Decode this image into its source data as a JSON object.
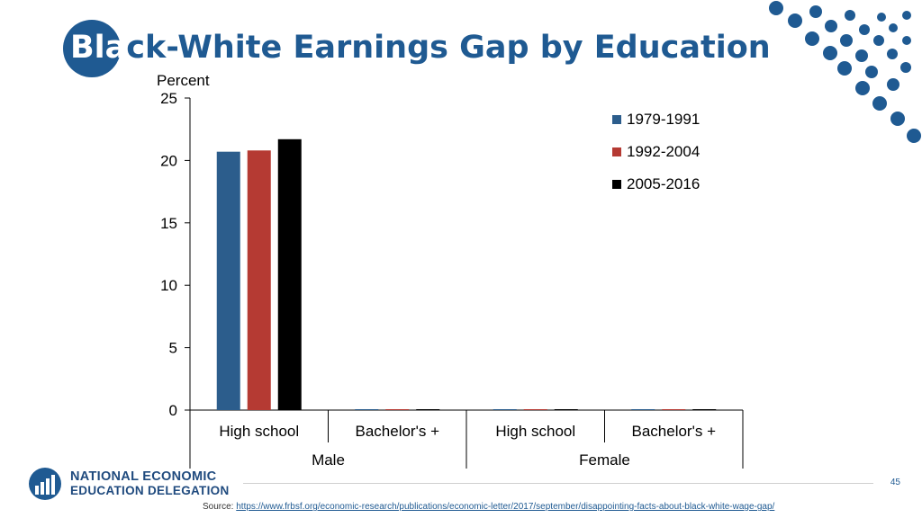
{
  "slide": {
    "title_part1": "Bla",
    "title_part2": "ck-White Earnings Gap by Education",
    "page_number": "45",
    "source_label": "Source: ",
    "source_url": "https://www.frbsf.org/economic-research/publications/economic-letter/2017/september/disappointing-facts-about-black-white-wage-gap/"
  },
  "branding": {
    "org_line1": "NATIONAL ECONOMIC",
    "org_line2": "EDUCATION DELEGATION",
    "primary_color": "#1f5a92"
  },
  "chart_data": {
    "type": "bar",
    "title": "",
    "ylabel": "Percent",
    "xlabel": "",
    "ylim": [
      0,
      25
    ],
    "yticks": [
      0,
      5,
      10,
      15,
      20,
      25
    ],
    "grid": false,
    "legend_position": "top-right",
    "groups": [
      {
        "label": "Male",
        "categories": [
          "High school",
          "Bachelor's +"
        ]
      },
      {
        "label": "Female",
        "categories": [
          "High school",
          "Bachelor's +"
        ]
      }
    ],
    "categories": [
      "High school",
      "Bachelor's +",
      "High school",
      "Bachelor's +"
    ],
    "series": [
      {
        "name": "1979-1991",
        "color": "#2c5d8c",
        "values": [
          20.7,
          0,
          0,
          0
        ]
      },
      {
        "name": "1992-2004",
        "color": "#b53a33",
        "values": [
          20.8,
          0,
          0,
          0
        ]
      },
      {
        "name": "2005-2016",
        "color": "#000000",
        "values": [
          21.7,
          0,
          0,
          0
        ]
      }
    ]
  }
}
